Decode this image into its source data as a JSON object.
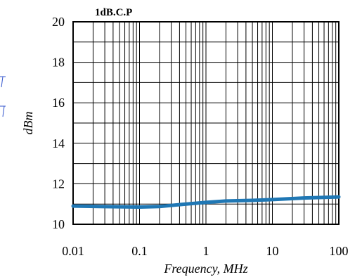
{
  "chart_data": {
    "type": "line",
    "title": "1dB.C.P",
    "xlabel": "Frequency, MHz",
    "ylabel": "dBm",
    "x_scale": "log",
    "xlim": [
      0.01,
      100
    ],
    "ylim": [
      10,
      20
    ],
    "x_ticks": [
      "0.01",
      "0.1",
      "1",
      "10",
      "100"
    ],
    "y_ticks": [
      "10",
      "12",
      "14",
      "16",
      "18",
      "20"
    ],
    "grid": true,
    "series": [
      {
        "color": "#1f77b4",
        "x": [
          0.01,
          0.03,
          0.1,
          0.2,
          0.5,
          1,
          2,
          5,
          10,
          30,
          100
        ],
        "y": [
          10.9,
          10.87,
          10.85,
          10.88,
          11.0,
          11.08,
          11.15,
          11.18,
          11.22,
          11.3,
          11.35
        ]
      }
    ]
  }
}
